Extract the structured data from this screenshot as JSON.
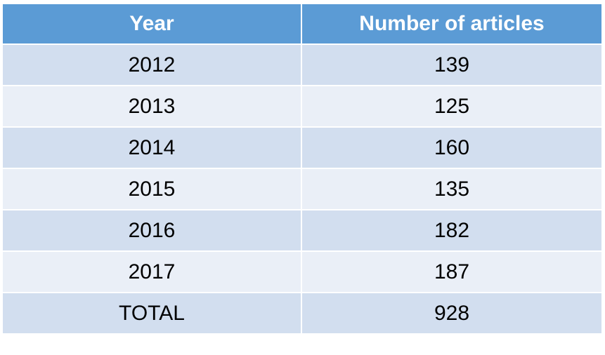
{
  "table": {
    "header": [
      "Year",
      "Number of articles"
    ],
    "rows": [
      [
        "2012",
        "139"
      ],
      [
        "2013",
        "125"
      ],
      [
        "2014",
        "160"
      ],
      [
        "2015",
        "135"
      ],
      [
        "2016",
        "182"
      ],
      [
        "2017",
        "187"
      ],
      [
        "TOTAL",
        "928"
      ]
    ]
  }
}
